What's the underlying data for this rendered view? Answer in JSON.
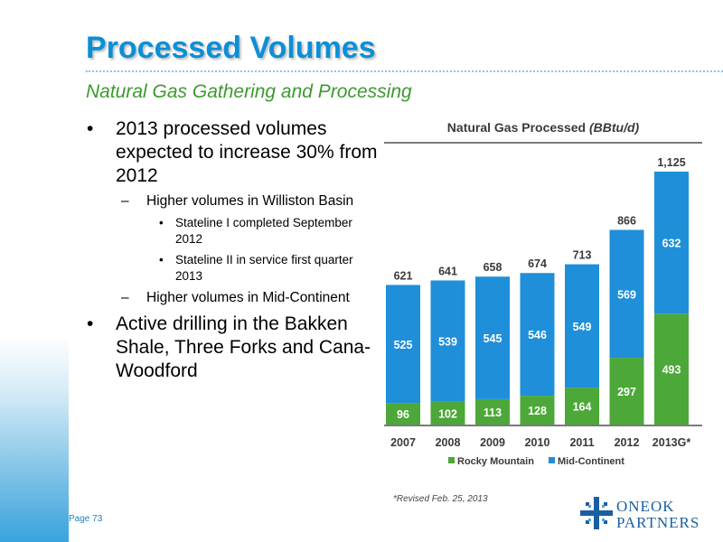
{
  "title": "Processed Volumes",
  "subtitle": "Natural Gas Gathering and Processing",
  "bullets": {
    "b1": "2013 processed volumes expected to increase 30% from 2012",
    "b1_sub1": "Higher volumes in Williston Basin",
    "b1_sub1_item1": "Stateline I completed September 2012",
    "b1_sub1_item2": "Stateline II in service first quarter 2013",
    "b1_sub2": "Higher volumes in Mid-Continent",
    "b2": "Active drilling in the Bakken Shale, Three Forks and Cana-Woodford",
    "dot": "•",
    "dash": "–"
  },
  "chart_title_main": "Natural Gas Processed ",
  "chart_title_unit": "(BBtu/d)",
  "chart_data": {
    "type": "bar",
    "stacked": true,
    "title": "Natural Gas Processed (BBtu/d)",
    "categories": [
      "2007",
      "2008",
      "2009",
      "2010",
      "2011",
      "2012",
      "2013G*"
    ],
    "series": [
      {
        "name": "Rocky Mountain",
        "values": [
          96,
          102,
          113,
          128,
          164,
          297,
          493
        ],
        "color": "#4ca838"
      },
      {
        "name": "Mid-Continent",
        "values": [
          525,
          539,
          545,
          546,
          549,
          569,
          632
        ],
        "color": "#1f8fd9"
      }
    ],
    "totals": [
      "621",
      "641",
      "658",
      "674",
      "713",
      "866",
      "1,125"
    ],
    "ylim": [
      0,
      1125
    ],
    "legend": "bottom"
  },
  "footnote": "*Revised Feb. 25, 2013",
  "page_label": "Page 73",
  "logo": {
    "line1": "ONEOK",
    "line2": "PARTNERS"
  },
  "colors": {
    "title": "#0b8fd6",
    "subtitle": "#3c9a2e",
    "axis": "#7a7a7a"
  }
}
